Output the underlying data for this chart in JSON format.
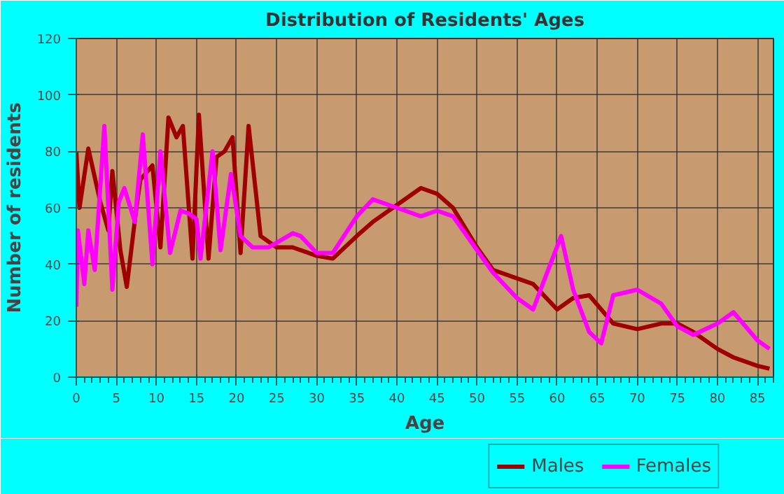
{
  "chart_data": {
    "type": "line",
    "title": "Distribution of Residents' Ages",
    "xlabel": "Age",
    "ylabel": "Number of residents",
    "xlim": [
      0,
      87
    ],
    "xticks": [
      0,
      5,
      10,
      15,
      20,
      25,
      30,
      35,
      40,
      45,
      50,
      55,
      60,
      65,
      70,
      75,
      80,
      85
    ],
    "ylim": [
      0,
      120
    ],
    "yticks": [
      0,
      20,
      40,
      60,
      80,
      100,
      120
    ],
    "grid": true,
    "legend": "bottom right",
    "line_style": "solid",
    "marker": "none",
    "series": [
      {
        "name": "Males",
        "color": "#a00000",
        "x": [
          0,
          0.4,
          1.5,
          3,
          4,
          4.5,
          5.5,
          6.3,
          7.5,
          8,
          9.5,
          10.5,
          11.5,
          12.5,
          13.3,
          14.5,
          15.3,
          16.5,
          17.5,
          18.5,
          19.5,
          20.5,
          21.5,
          23,
          25,
          27,
          30,
          32,
          35,
          37,
          40,
          43,
          45,
          47,
          50,
          52,
          55,
          57,
          60,
          62,
          64,
          67,
          70,
          73,
          75,
          77,
          80,
          82,
          85,
          86.5
        ],
        "values": [
          80,
          60,
          81,
          62,
          52,
          73,
          45,
          32,
          60,
          70,
          75,
          46,
          92,
          85,
          89,
          42,
          93,
          42,
          78,
          80,
          85,
          44,
          89,
          50,
          46,
          46,
          43,
          42,
          50,
          55,
          61,
          67,
          65,
          60,
          46,
          38,
          35,
          33,
          24,
          28,
          29,
          19,
          17,
          19,
          19,
          16,
          10,
          7,
          4,
          3
        ]
      },
      {
        "name": "Females",
        "color": "#ff00ff",
        "x": [
          0,
          0.2,
          1,
          1.5,
          2.3,
          3.5,
          4.5,
          5.3,
          6,
          7.3,
          8.3,
          9.5,
          10.5,
          11.7,
          13,
          14,
          15,
          15.5,
          17,
          18,
          19.3,
          20.5,
          22,
          24,
          27,
          28,
          30,
          32,
          35,
          37,
          40,
          43,
          45,
          47,
          50,
          52,
          55,
          57,
          60.5,
          62,
          64,
          65.5,
          67,
          70,
          73,
          75,
          77,
          80,
          82,
          85,
          86.5
        ],
        "values": [
          25,
          52,
          33,
          52,
          38,
          89,
          31,
          62,
          67,
          55,
          86,
          40,
          80,
          44,
          59,
          58,
          56,
          42,
          80,
          45,
          72,
          50,
          46,
          46,
          51,
          50,
          44,
          44,
          57,
          63,
          60,
          57,
          59,
          57,
          45,
          37,
          28,
          24,
          50,
          31,
          16,
          12,
          29,
          31,
          26,
          18,
          15,
          19,
          23,
          13,
          10
        ]
      }
    ]
  }
}
